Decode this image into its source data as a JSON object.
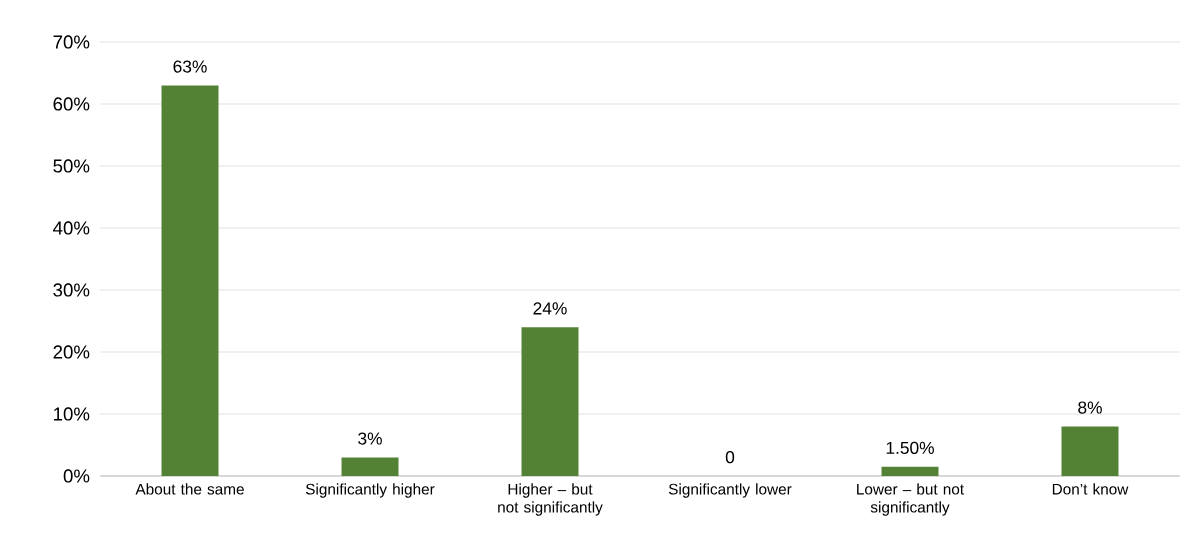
{
  "chart_data": {
    "type": "bar",
    "categories": [
      "About the same",
      "Significantly higher",
      "Higher – but not significantly",
      "Significantly lower",
      "Lower – but not significantly",
      "Don’t know"
    ],
    "values": [
      63,
      3,
      24,
      0,
      1.5,
      8
    ],
    "value_labels": [
      "63%",
      "3%",
      "24%",
      "0",
      "1.50%",
      "8%"
    ],
    "color": "#548235",
    "ylim": [
      0,
      70
    ],
    "yticks": [
      {
        "value": 0,
        "label": "0%"
      },
      {
        "value": 10,
        "label": "10%"
      },
      {
        "value": 20,
        "label": "20%"
      },
      {
        "value": 30,
        "label": "30%"
      },
      {
        "value": 40,
        "label": "40%"
      },
      {
        "value": 50,
        "label": "50%"
      },
      {
        "value": 60,
        "label": "60%"
      },
      {
        "value": 70,
        "label": "70%"
      }
    ],
    "grid": "y"
  }
}
